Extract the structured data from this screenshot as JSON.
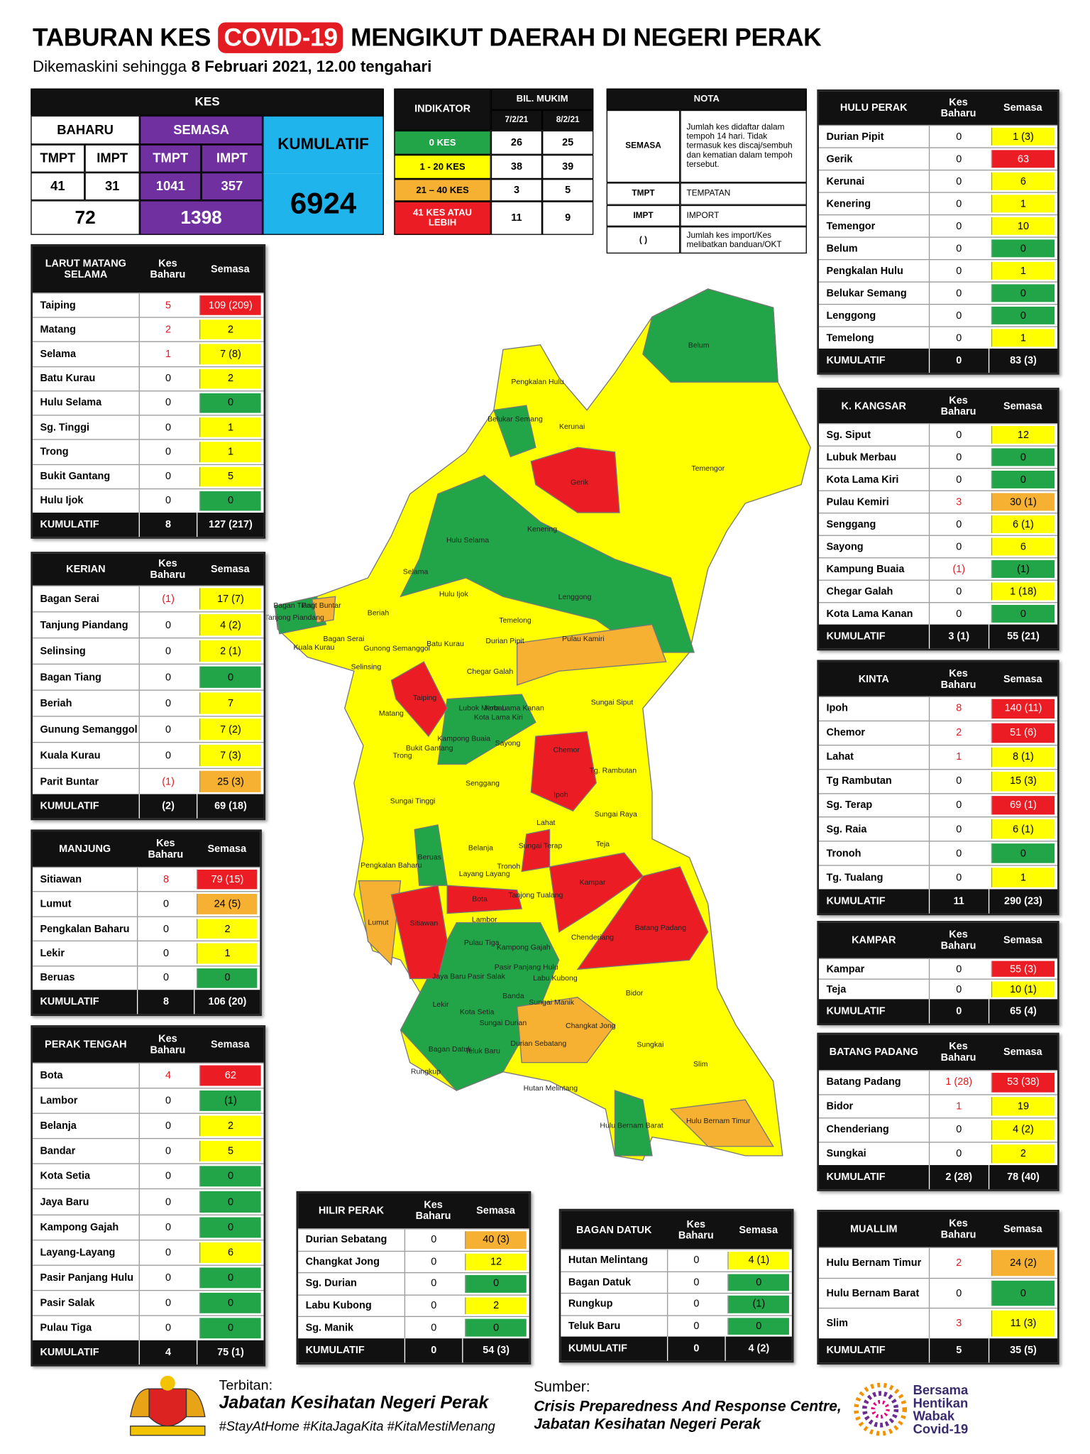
{
  "header": {
    "title_left": "TABURAN KES",
    "title_badge": "COVID-19",
    "title_right": "MENGIKUT DAERAH DI NEGERI PERAK",
    "subtitle": "Dikemaskini sehingga",
    "date": "8 Februari 2021, 12.00 tengahari"
  },
  "palette": {
    "green": "#22a548",
    "yellow": "#ffff00",
    "orange": "#f6b133",
    "red": "#ec1c24"
  },
  "summary": {
    "kes": "KES",
    "baharu": "BAHARU",
    "semasa": "SEMASA",
    "kumulatif": "KUMULATIF",
    "tmpt": "TMPT",
    "impt": "IMPT",
    "baharu_tmpt": 41,
    "baharu_impt": 31,
    "semasa_tmpt": 1041,
    "semasa_impt": 357,
    "baharu_total": 72,
    "semasa_total": 1398,
    "kumulatif_total": 6924
  },
  "indicator": {
    "title": "INDIKATOR",
    "group": "BIL. MUKIM",
    "dates": [
      "7/2/21",
      "8/2/21"
    ],
    "rows": [
      {
        "label": "0 KES",
        "level": "green",
        "values": [
          26,
          25
        ]
      },
      {
        "label": "1 - 20 KES",
        "level": "yellow",
        "values": [
          38,
          39
        ]
      },
      {
        "label": "21 – 40 KES",
        "level": "orange",
        "values": [
          3,
          5
        ]
      },
      {
        "label": "41 KES ATAU LEBIH",
        "level": "red",
        "values": [
          11,
          9
        ]
      }
    ]
  },
  "nota": {
    "title": "NOTA",
    "rows": [
      [
        "SEMASA",
        "Jumlah kes didaftar dalam tempoh 14 hari. Tidak termasuk kes discaj/sembuh dan kematian dalam tempoh tersebut."
      ],
      [
        "TMPT",
        "TEMPATAN"
      ],
      [
        "IMPT",
        "IMPORT"
      ],
      [
        "( )",
        "Jumlah kes import/Kes melibatkan banduan/OKT"
      ]
    ]
  },
  "col_headers": [
    "Kes Baharu",
    "Semasa"
  ],
  "total_label": "KUMULATIF",
  "districts": [
    {
      "title": "LARUT MATANG SELAMA",
      "rows": [
        {
          "name": "Taiping",
          "baharu": 5,
          "semasa": "109 (209)",
          "level": "red"
        },
        {
          "name": "Matang",
          "baharu": 2,
          "semasa": 2,
          "level": "yellow"
        },
        {
          "name": "Selama",
          "baharu": 1,
          "semasa": "7 (8)",
          "level": "yellow"
        },
        {
          "name": "Batu Kurau",
          "baharu": 0,
          "semasa": 2,
          "level": "yellow"
        },
        {
          "name": "Hulu Selama",
          "baharu": 0,
          "semasa": 0,
          "level": "green"
        },
        {
          "name": "Sg. Tinggi",
          "baharu": 0,
          "semasa": 1,
          "level": "yellow"
        },
        {
          "name": "Trong",
          "baharu": 0,
          "semasa": 1,
          "level": "yellow"
        },
        {
          "name": "Bukit Gantang",
          "baharu": 0,
          "semasa": 5,
          "level": "yellow"
        },
        {
          "name": "Hulu Ijok",
          "baharu": 0,
          "semasa": 0,
          "level": "green"
        }
      ],
      "total": [
        8,
        "127 (217)"
      ]
    },
    {
      "title": "KERIAN",
      "rows": [
        {
          "name": "Bagan Serai",
          "baharu": "(1)",
          "semasa": "17 (7)",
          "level": "yellow"
        },
        {
          "name": "Tanjung Piandang",
          "baharu": 0,
          "semasa": "4 (2)",
          "level": "yellow"
        },
        {
          "name": "Selinsing",
          "baharu": 0,
          "semasa": "2 (1)",
          "level": "yellow"
        },
        {
          "name": "Bagan Tiang",
          "baharu": 0,
          "semasa": 0,
          "level": "green"
        },
        {
          "name": "Beriah",
          "baharu": 0,
          "semasa": 7,
          "level": "yellow"
        },
        {
          "name": "Gunung Semanggol",
          "baharu": 0,
          "semasa": "7 (2)",
          "level": "yellow"
        },
        {
          "name": "Kuala Kurau",
          "baharu": 0,
          "semasa": "7 (3)",
          "level": "yellow"
        },
        {
          "name": "Parit Buntar",
          "baharu": "(1)",
          "semasa": "25 (3)",
          "level": "orange"
        }
      ],
      "total": [
        "(2)",
        "69 (18)"
      ]
    },
    {
      "title": "MANJUNG",
      "rows": [
        {
          "name": "Sitiawan",
          "baharu": 8,
          "semasa": "79 (15)",
          "level": "red"
        },
        {
          "name": "Lumut",
          "baharu": 0,
          "semasa": "24 (5)",
          "level": "orange"
        },
        {
          "name": "Pengkalan Baharu",
          "baharu": 0,
          "semasa": 2,
          "level": "yellow"
        },
        {
          "name": "Lekir",
          "baharu": 0,
          "semasa": 1,
          "level": "yellow"
        },
        {
          "name": "Beruas",
          "baharu": 0,
          "semasa": 0,
          "level": "green"
        }
      ],
      "total": [
        8,
        "106 (20)"
      ]
    },
    {
      "title": "PERAK TENGAH",
      "rows": [
        {
          "name": "Bota",
          "baharu": 4,
          "semasa": 62,
          "level": "red"
        },
        {
          "name": "Lambor",
          "baharu": 0,
          "semasa": "(1)",
          "level": "green"
        },
        {
          "name": "Belanja",
          "baharu": 0,
          "semasa": 2,
          "level": "yellow"
        },
        {
          "name": "Bandar",
          "baharu": 0,
          "semasa": 5,
          "level": "yellow"
        },
        {
          "name": "Kota Setia",
          "baharu": 0,
          "semasa": 0,
          "level": "green"
        },
        {
          "name": "Jaya Baru",
          "baharu": 0,
          "semasa": 0,
          "level": "green"
        },
        {
          "name": "Kampong Gajah",
          "baharu": 0,
          "semasa": 0,
          "level": "green"
        },
        {
          "name": "Layang-Layang",
          "baharu": 0,
          "semasa": 6,
          "level": "yellow"
        },
        {
          "name": "Pasir Panjang Hulu",
          "baharu": 0,
          "semasa": 0,
          "level": "green"
        },
        {
          "name": "Pasir Salak",
          "baharu": 0,
          "semasa": 0,
          "level": "green"
        },
        {
          "name": "Pulau Tiga",
          "baharu": 0,
          "semasa": 0,
          "level": "green"
        }
      ],
      "total": [
        4,
        "75 (1)"
      ]
    },
    {
      "title": "HULU PERAK",
      "rows": [
        {
          "name": "Durian Pipit",
          "baharu": 0,
          "semasa": "1 (3)",
          "level": "yellow"
        },
        {
          "name": "Gerik",
          "baharu": 0,
          "semasa": 63,
          "level": "red"
        },
        {
          "name": "Kerunai",
          "baharu": 0,
          "semasa": 6,
          "level": "yellow"
        },
        {
          "name": "Kenering",
          "baharu": 0,
          "semasa": 1,
          "level": "yellow"
        },
        {
          "name": "Temengor",
          "baharu": 0,
          "semasa": 10,
          "level": "yellow"
        },
        {
          "name": "Belum",
          "baharu": 0,
          "semasa": 0,
          "level": "green"
        },
        {
          "name": "Pengkalan Hulu",
          "baharu": 0,
          "semasa": 1,
          "level": "yellow"
        },
        {
          "name": "Belukar Semang",
          "baharu": 0,
          "semasa": 0,
          "level": "green"
        },
        {
          "name": "Lenggong",
          "baharu": 0,
          "semasa": 0,
          "level": "green"
        },
        {
          "name": "Temelong",
          "baharu": 0,
          "semasa": 1,
          "level": "yellow"
        }
      ],
      "total": [
        0,
        "83 (3)"
      ]
    },
    {
      "title": "K. KANGSAR",
      "rows": [
        {
          "name": "Sg. Siput",
          "baharu": 0,
          "semasa": 12,
          "level": "yellow"
        },
        {
          "name": "Lubuk Merbau",
          "baharu": 0,
          "semasa": 0,
          "level": "green"
        },
        {
          "name": "Kota Lama Kiri",
          "baharu": 0,
          "semasa": 0,
          "level": "green"
        },
        {
          "name": "Pulau Kemiri",
          "baharu": 3,
          "semasa": "30 (1)",
          "level": "orange"
        },
        {
          "name": "Senggang",
          "baharu": 0,
          "semasa": "6 (1)",
          "level": "yellow"
        },
        {
          "name": "Sayong",
          "baharu": 0,
          "semasa": 6,
          "level": "yellow"
        },
        {
          "name": "Kampung Buaia",
          "baharu": "(1)",
          "semasa": "(1)",
          "level": "green"
        },
        {
          "name": "Chegar Galah",
          "baharu": 0,
          "semasa": "1 (18)",
          "level": "yellow"
        },
        {
          "name": "Kota Lama Kanan",
          "baharu": 0,
          "semasa": 0,
          "level": "green"
        }
      ],
      "total": [
        "3 (1)",
        "55 (21)"
      ]
    },
    {
      "title": "KINTA",
      "rows": [
        {
          "name": "Ipoh",
          "baharu": 8,
          "semasa": "140 (11)",
          "level": "red"
        },
        {
          "name": "Chemor",
          "baharu": 2,
          "semasa": "51 (6)",
          "level": "red"
        },
        {
          "name": "Lahat",
          "baharu": 1,
          "semasa": "8 (1)",
          "level": "yellow"
        },
        {
          "name": "Tg Rambutan",
          "baharu": 0,
          "semasa": "15 (3)",
          "level": "yellow"
        },
        {
          "name": "Sg. Terap",
          "baharu": 0,
          "semasa": "69 (1)",
          "level": "red"
        },
        {
          "name": "Sg. Raia",
          "baharu": 0,
          "semasa": "6 (1)",
          "level": "yellow"
        },
        {
          "name": "Tronoh",
          "baharu": 0,
          "semasa": 0,
          "level": "green"
        },
        {
          "name": "Tg. Tualang",
          "baharu": 0,
          "semasa": 1,
          "level": "yellow"
        }
      ],
      "total": [
        11,
        "290 (23)"
      ]
    },
    {
      "title": "KAMPAR",
      "rows": [
        {
          "name": "Kampar",
          "baharu": 0,
          "semasa": "55 (3)",
          "level": "red"
        },
        {
          "name": "Teja",
          "baharu": 0,
          "semasa": "10 (1)",
          "level": "yellow"
        }
      ],
      "total": [
        0,
        "65 (4)"
      ]
    },
    {
      "title": "BATANG PADANG",
      "rows": [
        {
          "name": "Batang Padang",
          "baharu": "1 (28)",
          "semasa": "53 (38)",
          "level": "red"
        },
        {
          "name": "Bidor",
          "baharu": 1,
          "semasa": 19,
          "level": "yellow"
        },
        {
          "name": "Chenderiang",
          "baharu": 0,
          "semasa": "4 (2)",
          "level": "yellow"
        },
        {
          "name": "Sungkai",
          "baharu": 0,
          "semasa": 2,
          "level": "yellow"
        }
      ],
      "total": [
        "2 (28)",
        "78 (40)"
      ]
    },
    {
      "title": "MUALLIM",
      "rows": [
        {
          "name": "Hulu Bernam Timur",
          "baharu": 2,
          "semasa": "24 (2)",
          "level": "orange"
        },
        {
          "name": "Hulu Bernam Barat",
          "baharu": 0,
          "semasa": 0,
          "level": "green"
        },
        {
          "name": "Slim",
          "baharu": 3,
          "semasa": "11 (3)",
          "level": "yellow"
        }
      ],
      "total": [
        5,
        "35 (5)"
      ]
    },
    {
      "title": "HILIR PERAK",
      "rows": [
        {
          "name": "Durian Sebatang",
          "baharu": 0,
          "semasa": "40 (3)",
          "level": "orange"
        },
        {
          "name": "Changkat Jong",
          "baharu": 0,
          "semasa": 12,
          "level": "yellow"
        },
        {
          "name": "Sg. Durian",
          "baharu": 0,
          "semasa": 0,
          "level": "green"
        },
        {
          "name": "Labu Kubong",
          "baharu": 0,
          "semasa": 2,
          "level": "yellow"
        },
        {
          "name": "Sg. Manik",
          "baharu": 0,
          "semasa": 0,
          "level": "green"
        }
      ],
      "total": [
        0,
        "54 (3)"
      ]
    },
    {
      "title": "BAGAN DATUK",
      "rows": [
        {
          "name": "Hutan Melintang",
          "baharu": 0,
          "semasa": "4 (1)",
          "level": "yellow"
        },
        {
          "name": "Bagan Datuk",
          "baharu": 0,
          "semasa": 0,
          "level": "green"
        },
        {
          "name": "Rungkup",
          "baharu": 0,
          "semasa": "(1)",
          "level": "green"
        },
        {
          "name": "Teluk Baru",
          "baharu": 0,
          "semasa": 0,
          "level": "green"
        }
      ],
      "total": [
        0,
        "4 (2)"
      ]
    }
  ],
  "map": {
    "labels": [
      "Belum",
      "Pengkalan Hulu",
      "Belukar Semang",
      "Kerunai",
      "Gerik",
      "Temengor",
      "Kenering",
      "Hulu Selama",
      "Selama",
      "Hulu Ijok",
      "Lenggong",
      "Parit Buntar",
      "Tanjong Piandang",
      "Beriah",
      "Temelong",
      "Bagan Serai",
      "Kuala Kurau",
      "Gunong Semanggol",
      "Batu Kurau",
      "Durian Pipit",
      "Pulau Kamiri",
      "Selinsing",
      "Chegar Galah",
      "Taiping",
      "Lubok Merbau",
      "Kota Lama Kiri",
      "Kota Lama Kanan",
      "Sungai Siput",
      "Matang",
      "Kampong Buaia",
      "Sayong",
      "Bukit Gantang",
      "Trong",
      "Chemor",
      "Tg. Rambutan",
      "Senggang",
      "Ipoh",
      "Sungai Tinggi",
      "Sungai Raya",
      "Lahat",
      "Belanja",
      "Sungai Terap",
      "Teja",
      "Beruas",
      "Pengkalan Baharu",
      "Layang Layang",
      "Tronoh",
      "Kampar",
      "Bota",
      "Tanjong Tualang",
      "Lumut",
      "Sitiawan",
      "Lambor",
      "Batang Padang",
      "Chenderiang",
      "Pulau Tiga",
      "Kampong Gajah",
      "Pasir Panjang Hulu",
      "Pasir Salak",
      "Jaya Baru",
      "Labu Kubong",
      "Bidor",
      "Lekir",
      "Kota Setia",
      "Banda",
      "Sungai Manik",
      "Changkat Jong",
      "Sungai Durian",
      "Durian Sebatang",
      "Sungkai",
      "Bagan Datuk",
      "Teluk Baru",
      "Slim",
      "Rungkup",
      "Hutan Melintang",
      "Hulu Bernam Timur",
      "Hulu Bernam Barat",
      "Bagan Tiang"
    ]
  },
  "footer": {
    "published_label": "Terbitan:",
    "publisher": "Jabatan Kesihatan Negeri Perak",
    "hashtags": "#StayAtHome #KitaJagaKita #KitaMestiMenang",
    "source_label": "Sumber:",
    "source_lines": [
      "Crisis Preparedness And Response Centre,",
      "Jabatan Kesihatan Negeri Perak"
    ],
    "logo_lines": [
      "Bersama",
      "Hentikan",
      "Wabak",
      "Covid-19"
    ]
  }
}
